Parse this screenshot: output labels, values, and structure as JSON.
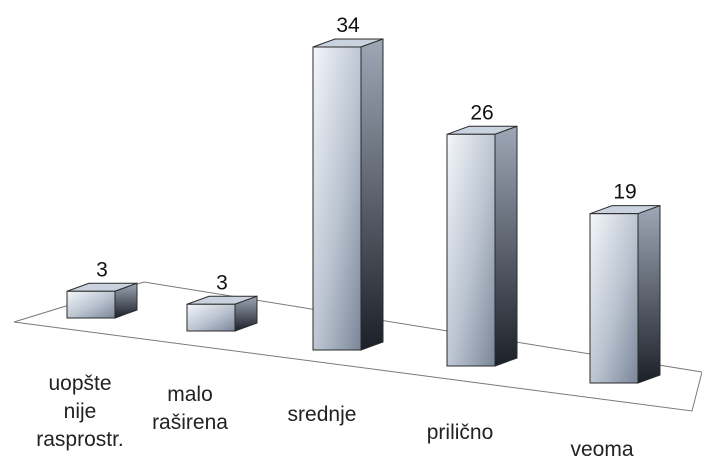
{
  "chart_data": {
    "type": "bar",
    "title": "",
    "xlabel": "",
    "ylabel": "",
    "categories": [
      [
        "uopšte",
        "nije",
        "rasprostr."
      ],
      [
        "malo",
        "raširena"
      ],
      [
        "srednje"
      ],
      [
        "prilično"
      ],
      [
        "veoma"
      ]
    ],
    "values": [
      3,
      3,
      34,
      26,
      19
    ],
    "ylim": [
      0,
      34
    ],
    "grid": false,
    "legend": "none",
    "three_d": true,
    "colors": {
      "bar_front_light": "#f4f7fb",
      "bar_front_dark": "#7a8699",
      "bar_side_light": "#9ea7b6",
      "bar_side_dark": "#1c2028",
      "bar_top": "#c9d2de",
      "outline": "#2b2b2b",
      "floor_line": "#7a7a7a"
    }
  }
}
